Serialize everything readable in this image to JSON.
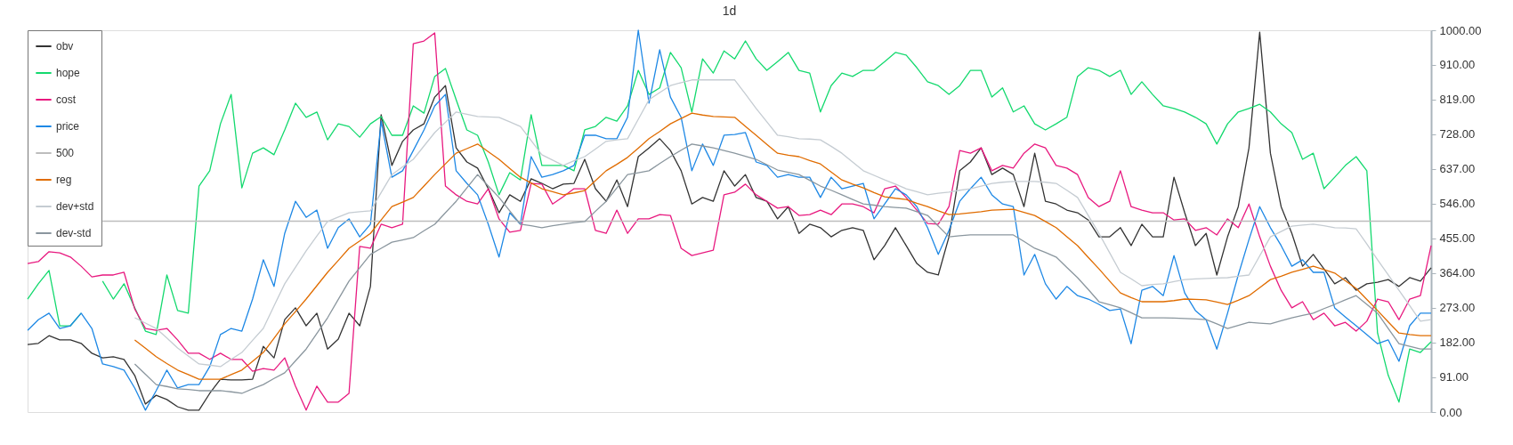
{
  "chart_data": {
    "type": "line",
    "title": "1d",
    "categories": [
      null,
      null,
      null,
      null,
      null,
      null,
      null,
      null,
      null,
      null,
      null,
      null,
      null,
      null,
      null,
      null,
      null,
      null,
      null,
      null,
      null,
      null,
      null,
      null,
      null,
      null,
      null,
      null,
      null,
      null,
      null,
      null,
      null,
      null,
      null,
      null,
      null,
      null,
      null,
      null,
      null,
      null,
      null,
      null,
      null,
      null,
      null,
      null,
      null,
      null,
      null,
      null,
      null,
      null,
      null,
      null,
      null,
      null,
      null,
      null,
      null,
      null,
      null,
      null,
      null,
      null,
      null,
      null,
      null,
      null,
      null,
      null,
      null,
      null,
      null,
      null,
      null,
      null,
      null,
      null,
      null,
      null,
      null,
      null,
      null,
      null,
      null,
      null,
      null,
      null,
      null,
      null,
      null,
      null,
      null,
      null,
      null,
      null,
      null,
      null,
      null,
      null,
      null,
      null,
      null,
      null,
      null,
      null,
      null,
      null,
      null,
      null,
      null,
      null,
      null,
      null,
      null,
      null,
      null,
      null,
      null,
      null,
      null,
      null,
      null,
      null,
      null,
      null,
      null,
      null,
      null,
      null
    ],
    "ylim": [
      0,
      1000
    ],
    "yticks": [
      {
        "value": 0,
        "label": "0.00"
      },
      {
        "value": 91,
        "label": "91.00"
      },
      {
        "value": 182,
        "label": "182.00"
      },
      {
        "value": 273,
        "label": "273.00"
      },
      {
        "value": 364,
        "label": "364.00"
      },
      {
        "value": 455,
        "label": "455.00"
      },
      {
        "value": 546,
        "label": "546.00"
      },
      {
        "value": 637,
        "label": "637.00"
      },
      {
        "value": 728,
        "label": "728.00"
      },
      {
        "value": 819,
        "label": "819.00"
      },
      {
        "value": 910,
        "label": "910.00"
      },
      {
        "value": 1000,
        "label": "1000.00"
      }
    ],
    "tick_labels": "y",
    "legend": "top left",
    "series": [
      {
        "name": "obv",
        "color": "#333333",
        "values": [
          177,
          180,
          200,
          189,
          189,
          180,
          154,
          142,
          145,
          138,
          96,
          21,
          44,
          33,
          14,
          5,
          5,
          49,
          86,
          84,
          84,
          86,
          172,
          142,
          242,
          273,
          226,
          259,
          165,
          191,
          259,
          226,
          329,
          779,
          646,
          709,
          739,
          755,
          825,
          855,
          692,
          655,
          639,
          585,
          522,
          569,
          552,
          611,
          599,
          585,
          597,
          599,
          662,
          585,
          552,
          608,
          538,
          669,
          692,
          716,
          685,
          632,
          545,
          562,
          552,
          632,
          592,
          622,
          562,
          552,
          506,
          538,
          468,
          492,
          483,
          459,
          476,
          483,
          476,
          399,
          436,
          483,
          436,
          389,
          366,
          359,
          459,
          632,
          655,
          692,
          622,
          639,
          622,
          538,
          678,
          552,
          545,
          529,
          522,
          503,
          459,
          459,
          483,
          436,
          492,
          459,
          459,
          615,
          522,
          436,
          468,
          359,
          459,
          538,
          692,
          995,
          678,
          538,
          468,
          382,
          413,
          375,
          336,
          352,
          319,
          336,
          340,
          347,
          329,
          352,
          343,
          378
        ]
      },
      {
        "name": "hope",
        "color": "#13d96e",
        "values": [
          296,
          336,
          371,
          226,
          226,
          259,
          null,
          343,
          296,
          336,
          273,
          212,
          203,
          359,
          266,
          259,
          592,
          632,
          755,
          832,
          587,
          678,
          692,
          674,
          739,
          809,
          772,
          786,
          713,
          755,
          748,
          720,
          755,
          774,
          725,
          725,
          802,
          783,
          879,
          900,
          818,
          739,
          725,
          655,
          569,
          627,
          608,
          779,
          646,
          646,
          646,
          632,
          739,
          748,
          772,
          762,
          802,
          895,
          832,
          849,
          942,
          902,
          786,
          925,
          888,
          946,
          925,
          972,
          925,
          895,
          918,
          942,
          895,
          888,
          786,
          855,
          888,
          879,
          895,
          895,
          918,
          942,
          935,
          902,
          865,
          855,
          832,
          855,
          895,
          895,
          825,
          849,
          786,
          802,
          755,
          739,
          755,
          772,
          879,
          902,
          895,
          879,
          895,
          832,
          865,
          832,
          802,
          795,
          786,
          772,
          755,
          702,
          755,
          786,
          795,
          806,
          786,
          755,
          732,
          662,
          678,
          585,
          615,
          646,
          669,
          632,
          207,
          96,
          26,
          165,
          156,
          184
        ]
      },
      {
        "name": "cost",
        "color": "#e8197f",
        "values": [
          389,
          394,
          420,
          417,
          406,
          382,
          354,
          359,
          359,
          366,
          270,
          219,
          214,
          219,
          189,
          154,
          154,
          138,
          154,
          138,
          138,
          107,
          114,
          110,
          142,
          68,
          5,
          68,
          26,
          26,
          49,
          434,
          429,
          492,
          483,
          492,
          965,
          972,
          993,
          592,
          569,
          552,
          545,
          585,
          506,
          471,
          476,
          599,
          597,
          545,
          564,
          585,
          585,
          476,
          468,
          529,
          468,
          506,
          506,
          517,
          515,
          429,
          410,
          417,
          424,
          569,
          576,
          597,
          569,
          552,
          534,
          538,
          515,
          517,
          529,
          517,
          545,
          545,
          538,
          522,
          585,
          592,
          562,
          529,
          494,
          492,
          538,
          685,
          678,
          692,
          632,
          646,
          639,
          678,
          702,
          692,
          646,
          639,
          622,
          562,
          538,
          552,
          632,
          538,
          529,
          522,
          522,
          503,
          506,
          476,
          483,
          464,
          506,
          483,
          545,
          459,
          382,
          319,
          273,
          289,
          242,
          259,
          226,
          235,
          212,
          238,
          296,
          289,
          242,
          296,
          305,
          436
        ]
      },
      {
        "name": "price",
        "color": "#1e88e5",
        "values": [
          214,
          242,
          259,
          219,
          226,
          259,
          219,
          126,
          119,
          110,
          63,
          5,
          56,
          110,
          63,
          72,
          72,
          119,
          203,
          219,
          212,
          296,
          399,
          329,
          468,
          552,
          510,
          529,
          429,
          483,
          506,
          459,
          492,
          762,
          615,
          632,
          685,
          739,
          802,
          832,
          632,
          599,
          569,
          492,
          406,
          522,
          492,
          669,
          615,
          622,
          632,
          646,
          725,
          725,
          716,
          716,
          772,
          1000,
          809,
          949,
          825,
          772,
          632,
          702,
          646,
          725,
          727,
          732,
          655,
          646,
          615,
          622,
          615,
          615,
          562,
          615,
          585,
          592,
          599,
          506,
          545,
          585,
          569,
          538,
          483,
          413,
          476,
          552,
          585,
          615,
          569,
          545,
          538,
          359,
          413,
          336,
          296,
          329,
          305,
          296,
          282,
          266,
          270,
          179,
          319,
          329,
          305,
          410,
          312,
          266,
          242,
          165,
          259,
          359,
          452,
          538,
          483,
          436,
          382,
          399,
          366,
          366,
          273,
          249,
          226,
          203,
          179,
          189,
          133,
          226,
          259,
          259
        ]
      },
      {
        "name": "500",
        "color": "#bdbdbd",
        "values": [
          null,
          null,
          null,
          null,
          null,
          null,
          null,
          500,
          500,
          500,
          500,
          500,
          500,
          500,
          500,
          500,
          500,
          500,
          500,
          500,
          500,
          500,
          500,
          500,
          500,
          500,
          500,
          500,
          500,
          500,
          500,
          500,
          500,
          500,
          500,
          500,
          500,
          500,
          500,
          500,
          500,
          500,
          500,
          500,
          500,
          500,
          500,
          500,
          500,
          500,
          500,
          500,
          500,
          500,
          500,
          500,
          500,
          500,
          500,
          500,
          500,
          500,
          500,
          500,
          500,
          500,
          500,
          500,
          500,
          500,
          500,
          500,
          500,
          500,
          500,
          500,
          500,
          500,
          500,
          500,
          500,
          500,
          500,
          500,
          500,
          500,
          500,
          500,
          500,
          500,
          500,
          500,
          500,
          500,
          500,
          500,
          500,
          500,
          500,
          500,
          500,
          500,
          500,
          500,
          500,
          500,
          500,
          500,
          500,
          500,
          500,
          500,
          500,
          500,
          500,
          500,
          500,
          500,
          500,
          500,
          500,
          500,
          500,
          500,
          500,
          500,
          500,
          500,
          500,
          500,
          500,
          500
        ]
      },
      {
        "name": "reg",
        "color": "#e06c00",
        "values": [
          null,
          null,
          null,
          null,
          null,
          null,
          null,
          null,
          null,
          null,
          189,
          167,
          145,
          127,
          110,
          98,
          86,
          86,
          86,
          98,
          110,
          133,
          156,
          193,
          231,
          263,
          296,
          331,
          366,
          397,
          429,
          448,
          468,
          503,
          538,
          550,
          562,
          592,
          622,
          650,
          678,
          690,
          702,
          682,
          662,
          638,
          615,
          600,
          585,
          577,
          569,
          574,
          580,
          606,
          632,
          649,
          667,
          691,
          716,
          735,
          755,
          769,
          783,
          778,
          774,
          773,
          772,
          748,
          725,
          701,
          678,
          673,
          669,
          659,
          650,
          629,
          608,
          597,
          587,
          575,
          564,
          560,
          557,
          547,
          538,
          527,
          517,
          519,
          522,
          525,
          529,
          530,
          531,
          523,
          515,
          499,
          483,
          459,
          436,
          405,
          375,
          343,
          312,
          300,
          289,
          289,
          289,
          292,
          296,
          295,
          294,
          288,
          282,
          293,
          305,
          326,
          347,
          356,
          366,
          374,
          382,
          373,
          364,
          344,
          324,
          295,
          266,
          236,
          207,
          203,
          200,
          200
        ]
      },
      {
        "name": "dev+std",
        "color": "#c5ccd2",
        "values": [
          null,
          null,
          null,
          null,
          null,
          null,
          null,
          null,
          null,
          null,
          247,
          233,
          219,
          194,
          168,
          147,
          126,
          123,
          119,
          138,
          156,
          188,
          219,
          278,
          336,
          379,
          422,
          461,
          499,
          511,
          522,
          525,
          527,
          575,
          622,
          642,
          662,
          697,
          732,
          759,
          786,
          780,
          774,
          773,
          772,
          760,
          748,
          711,
          674,
          660,
          646,
          658,
          669,
          689,
          709,
          713,
          716,
          767,
          818,
          837,
          855,
          863,
          870,
          870,
          870,
          870,
          870,
          833,
          795,
          760,
          725,
          721,
          716,
          715,
          713,
          696,
          678,
          655,
          632,
          620,
          608,
          597,
          585,
          577,
          569,
          573,
          576,
          581,
          585,
          592,
          599,
          602,
          604,
          604,
          604,
          602,
          599,
          581,
          562,
          515,
          468,
          417,
          366,
          349,
          331,
          334,
          336,
          342,
          347,
          349,
          350,
          351,
          352,
          356,
          359,
          409,
          459,
          473,
          487,
          490,
          492,
          488,
          483,
          482,
          480,
          440,
          399,
          359,
          319,
          279,
          238,
          242
        ]
      },
      {
        "name": "dev-std",
        "color": "#8a969e",
        "values": [
          null,
          null,
          null,
          null,
          null,
          null,
          null,
          null,
          null,
          null,
          126,
          99,
          72,
          67,
          61,
          59,
          56,
          56,
          56,
          53,
          49,
          61,
          72,
          88,
          103,
          134,
          165,
          206,
          247,
          295,
          343,
          378,
          413,
          429,
          445,
          451,
          457,
          475,
          492,
          522,
          552,
          587,
          622,
          592,
          562,
          527,
          492,
          488,
          483,
          488,
          492,
          496,
          499,
          526,
          552,
          587,
          622,
          627,
          632,
          651,
          669,
          686,
          702,
          697,
          692,
          685,
          678,
          670,
          662,
          648,
          634,
          628,
          622,
          607,
          592,
          581,
          569,
          557,
          545,
          542,
          538,
          536,
          534,
          525,
          515,
          487,
          459,
          462,
          464,
          464,
          464,
          464,
          464,
          447,
          429,
          418,
          406,
          379,
          352,
          321,
          289,
          281,
          273,
          260,
          247,
          247,
          247,
          246,
          245,
          244,
          242,
          231,
          219,
          227,
          235,
          233,
          231,
          239,
          247,
          253,
          259,
          271,
          282,
          294,
          305,
          282,
          259,
          219,
          179,
          172,
          165,
          165
        ]
      }
    ]
  }
}
